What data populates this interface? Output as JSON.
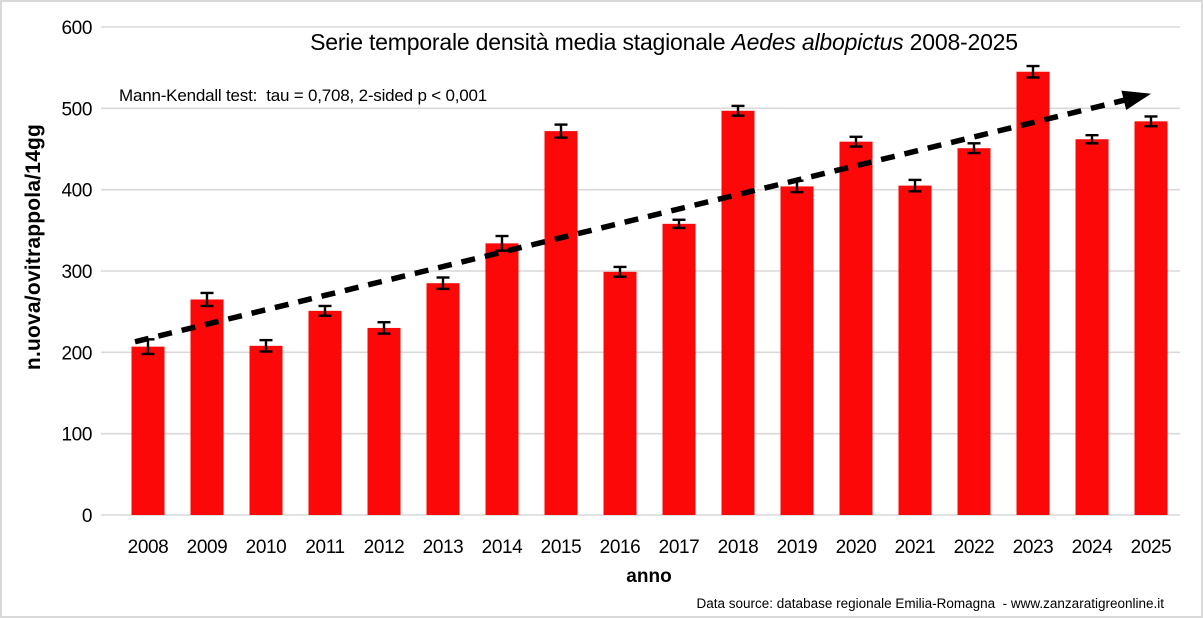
{
  "chart_data": {
    "type": "bar",
    "title": {
      "prefix": "Serie temporale densità media stagionale ",
      "italic": "Aedes albopictus",
      "suffix": " 2008-2025"
    },
    "annotation": "Mann-Kendall test:  tau = 0,708, 2-sided p < 0,001",
    "xlabel": "anno",
    "ylabel": "n.uova/ovitrappola/14gg",
    "source": "Data source: database regionale Emilia-Romagna  - www.zanzaratigreonline.it",
    "categories": [
      "2008",
      "2009",
      "2010",
      "2011",
      "2012",
      "2013",
      "2014",
      "2015",
      "2016",
      "2017",
      "2018",
      "2019",
      "2020",
      "2021",
      "2022",
      "2023",
      "2024",
      "2025"
    ],
    "values": [
      207,
      265,
      208,
      251,
      230,
      285,
      334,
      472,
      299,
      358,
      497,
      404,
      459,
      405,
      451,
      545,
      462,
      484
    ],
    "error_bars": [
      9,
      8,
      7,
      6,
      7,
      7,
      9,
      8,
      6,
      5,
      6,
      7,
      6,
      7,
      6,
      7,
      5,
      6
    ],
    "ylim": [
      0,
      600
    ],
    "yticks": [
      0,
      100,
      200,
      300,
      400,
      500,
      600
    ],
    "grid": true,
    "legend": "none",
    "trendline": {
      "style": "dashed-arrow",
      "start_value": 213,
      "end_value": 518
    },
    "colors": {
      "bar": "#fd0808",
      "gridline": "#d9d9d9",
      "error_bar": "#000000",
      "trend": "#000000",
      "text": "#000000",
      "frame_border": "#d9d9d9",
      "background": "#ffffff"
    }
  }
}
